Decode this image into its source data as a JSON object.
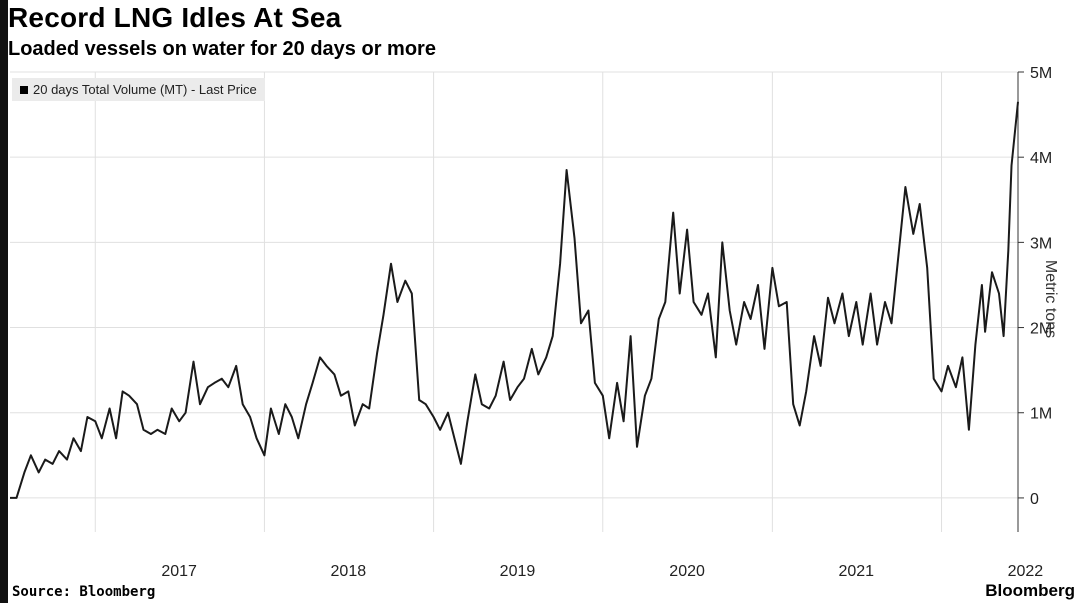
{
  "title": "Record LNG Idles At Sea",
  "subtitle": "Loaded vessels on water for 20 days or more",
  "source": "Source: Bloomberg",
  "brand": "Bloomberg",
  "colors": {
    "line": "#1a1a1a",
    "grid": "#e0e0e0",
    "background": "#ffffff"
  },
  "chart_data": {
    "type": "line",
    "title": "Record LNG Idles At Sea",
    "subtitle": "Loaded vessels on water for 20 days or more",
    "ylabel": "Metric tons",
    "xlabel": "",
    "ylim": [
      -400000,
      5000000
    ],
    "xlim": [
      "2016-07-01",
      "2022-06-15"
    ],
    "y_ticks": [
      0,
      1000000,
      2000000,
      3000000,
      4000000,
      5000000
    ],
    "y_tick_labels": [
      "0",
      "1M",
      "2M",
      "3M",
      "4M",
      "5M"
    ],
    "x_tick_labels": [
      "2017",
      "2018",
      "2019",
      "2020",
      "2021",
      "2022"
    ],
    "grid": true,
    "legend_position": "top-left",
    "series": [
      {
        "name": "20 days Total Volume (MT) - Last Price",
        "points": [
          [
            "2016-07-01",
            0
          ],
          [
            "2016-07-15",
            0
          ],
          [
            "2016-08-01",
            300000
          ],
          [
            "2016-08-15",
            500000
          ],
          [
            "2016-09-01",
            300000
          ],
          [
            "2016-09-15",
            450000
          ],
          [
            "2016-10-01",
            400000
          ],
          [
            "2016-10-15",
            550000
          ],
          [
            "2016-11-01",
            450000
          ],
          [
            "2016-11-15",
            700000
          ],
          [
            "2016-12-01",
            550000
          ],
          [
            "2016-12-15",
            950000
          ],
          [
            "2017-01-01",
            900000
          ],
          [
            "2017-01-15",
            700000
          ],
          [
            "2017-02-01",
            1050000
          ],
          [
            "2017-02-15",
            700000
          ],
          [
            "2017-03-01",
            1250000
          ],
          [
            "2017-03-15",
            1200000
          ],
          [
            "2017-04-01",
            1100000
          ],
          [
            "2017-04-15",
            800000
          ],
          [
            "2017-05-01",
            750000
          ],
          [
            "2017-05-15",
            800000
          ],
          [
            "2017-06-01",
            750000
          ],
          [
            "2017-06-15",
            1050000
          ],
          [
            "2017-07-01",
            900000
          ],
          [
            "2017-07-15",
            1000000
          ],
          [
            "2017-08-01",
            1600000
          ],
          [
            "2017-08-15",
            1100000
          ],
          [
            "2017-09-01",
            1300000
          ],
          [
            "2017-09-15",
            1350000
          ],
          [
            "2017-10-01",
            1400000
          ],
          [
            "2017-10-15",
            1300000
          ],
          [
            "2017-11-01",
            1550000
          ],
          [
            "2017-11-15",
            1100000
          ],
          [
            "2017-12-01",
            950000
          ],
          [
            "2017-12-15",
            700000
          ],
          [
            "2018-01-01",
            500000
          ],
          [
            "2018-01-15",
            1050000
          ],
          [
            "2018-02-01",
            750000
          ],
          [
            "2018-02-15",
            1100000
          ],
          [
            "2018-03-01",
            950000
          ],
          [
            "2018-03-15",
            700000
          ],
          [
            "2018-04-01",
            1100000
          ],
          [
            "2018-04-15",
            1350000
          ],
          [
            "2018-05-01",
            1650000
          ],
          [
            "2018-05-15",
            1550000
          ],
          [
            "2018-06-01",
            1450000
          ],
          [
            "2018-06-15",
            1200000
          ],
          [
            "2018-07-01",
            1250000
          ],
          [
            "2018-07-15",
            850000
          ],
          [
            "2018-08-01",
            1100000
          ],
          [
            "2018-08-15",
            1050000
          ],
          [
            "2018-09-01",
            1700000
          ],
          [
            "2018-09-15",
            2150000
          ],
          [
            "2018-10-01",
            2750000
          ],
          [
            "2018-10-15",
            2300000
          ],
          [
            "2018-11-01",
            2550000
          ],
          [
            "2018-11-15",
            2400000
          ],
          [
            "2018-12-01",
            1150000
          ],
          [
            "2018-12-15",
            1100000
          ],
          [
            "2019-01-01",
            950000
          ],
          [
            "2019-01-15",
            800000
          ],
          [
            "2019-02-01",
            1000000
          ],
          [
            "2019-02-15",
            700000
          ],
          [
            "2019-03-01",
            400000
          ],
          [
            "2019-03-15",
            900000
          ],
          [
            "2019-04-01",
            1450000
          ],
          [
            "2019-04-15",
            1100000
          ],
          [
            "2019-05-01",
            1050000
          ],
          [
            "2019-05-15",
            1200000
          ],
          [
            "2019-06-01",
            1600000
          ],
          [
            "2019-06-15",
            1150000
          ],
          [
            "2019-07-01",
            1300000
          ],
          [
            "2019-07-15",
            1400000
          ],
          [
            "2019-08-01",
            1750000
          ],
          [
            "2019-08-15",
            1450000
          ],
          [
            "2019-09-01",
            1650000
          ],
          [
            "2019-09-15",
            1900000
          ],
          [
            "2019-10-01",
            2750000
          ],
          [
            "2019-10-15",
            3850000
          ],
          [
            "2019-11-01",
            3050000
          ],
          [
            "2019-11-15",
            2050000
          ],
          [
            "2019-12-01",
            2200000
          ],
          [
            "2019-12-15",
            1350000
          ],
          [
            "2020-01-01",
            1200000
          ],
          [
            "2020-01-15",
            700000
          ],
          [
            "2020-02-01",
            1350000
          ],
          [
            "2020-02-15",
            900000
          ],
          [
            "2020-03-01",
            1900000
          ],
          [
            "2020-03-15",
            600000
          ],
          [
            "2020-04-01",
            1200000
          ],
          [
            "2020-04-15",
            1400000
          ],
          [
            "2020-05-01",
            2100000
          ],
          [
            "2020-05-15",
            2300000
          ],
          [
            "2020-06-01",
            3350000
          ],
          [
            "2020-06-15",
            2400000
          ],
          [
            "2020-07-01",
            3150000
          ],
          [
            "2020-07-15",
            2300000
          ],
          [
            "2020-08-01",
            2150000
          ],
          [
            "2020-08-15",
            2400000
          ],
          [
            "2020-09-01",
            1650000
          ],
          [
            "2020-09-15",
            3000000
          ],
          [
            "2020-10-01",
            2200000
          ],
          [
            "2020-10-15",
            1800000
          ],
          [
            "2020-11-01",
            2300000
          ],
          [
            "2020-11-15",
            2100000
          ],
          [
            "2020-12-01",
            2500000
          ],
          [
            "2020-12-15",
            1750000
          ],
          [
            "2021-01-01",
            2700000
          ],
          [
            "2021-01-15",
            2250000
          ],
          [
            "2021-02-01",
            2300000
          ],
          [
            "2021-02-15",
            1100000
          ],
          [
            "2021-03-01",
            850000
          ],
          [
            "2021-03-15",
            1250000
          ],
          [
            "2021-04-01",
            1900000
          ],
          [
            "2021-04-15",
            1550000
          ],
          [
            "2021-05-01",
            2350000
          ],
          [
            "2021-05-15",
            2050000
          ],
          [
            "2021-06-01",
            2400000
          ],
          [
            "2021-06-15",
            1900000
          ],
          [
            "2021-07-01",
            2300000
          ],
          [
            "2021-07-15",
            1800000
          ],
          [
            "2021-08-01",
            2400000
          ],
          [
            "2021-08-15",
            1800000
          ],
          [
            "2021-09-01",
            2300000
          ],
          [
            "2021-09-15",
            2050000
          ],
          [
            "2021-10-01",
            2900000
          ],
          [
            "2021-10-15",
            3650000
          ],
          [
            "2021-11-01",
            3100000
          ],
          [
            "2021-11-15",
            3450000
          ],
          [
            "2021-12-01",
            2700000
          ],
          [
            "2021-12-15",
            1400000
          ],
          [
            "2022-01-01",
            1250000
          ],
          [
            "2022-01-15",
            1550000
          ],
          [
            "2022-02-01",
            1300000
          ],
          [
            "2022-02-15",
            1650000
          ],
          [
            "2022-03-01",
            800000
          ],
          [
            "2022-03-15",
            1800000
          ],
          [
            "2022-03-29",
            2500000
          ],
          [
            "2022-04-05",
            1950000
          ],
          [
            "2022-04-20",
            2650000
          ],
          [
            "2022-05-05",
            2400000
          ],
          [
            "2022-05-15",
            1900000
          ],
          [
            "2022-05-25",
            2900000
          ],
          [
            "2022-06-01",
            3900000
          ],
          [
            "2022-06-15",
            4650000
          ]
        ]
      }
    ]
  }
}
